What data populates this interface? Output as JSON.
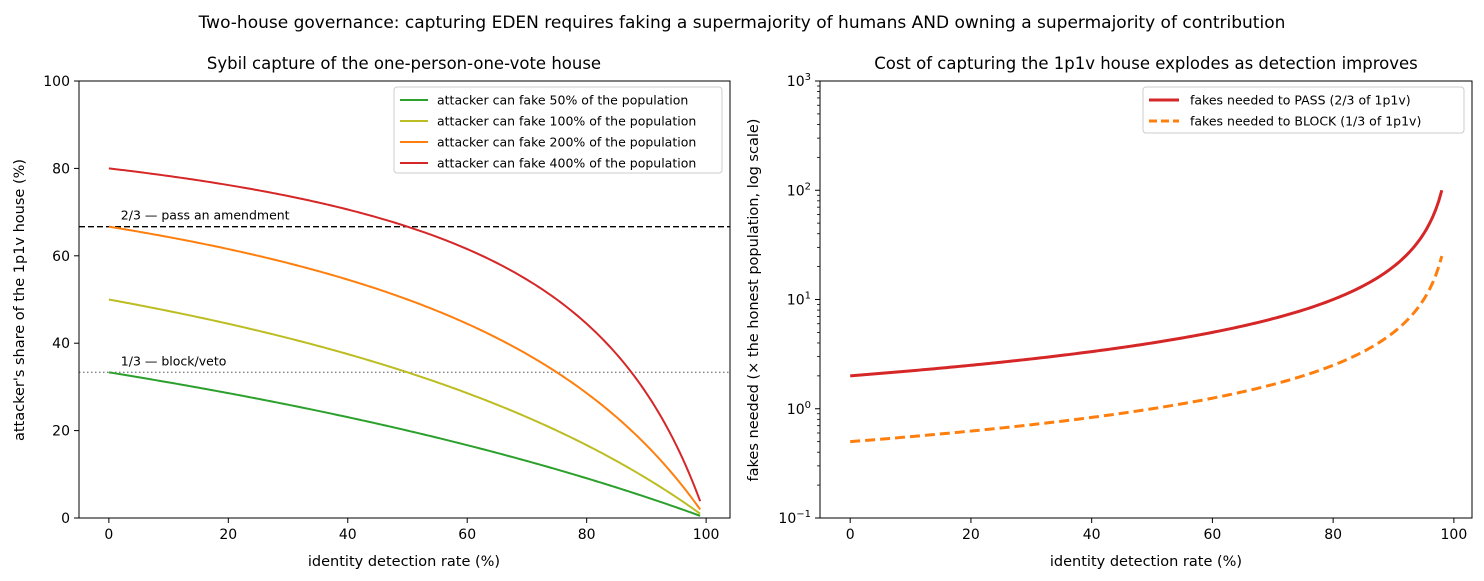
{
  "suptitle": "Two-house governance: capturing EDEN requires faking a supermajority of humans AND owning a supermajority of contribution",
  "chart_data": [
    {
      "type": "line",
      "title": "Sybil capture of the one-person-one-vote house",
      "xlabel": "identity detection rate (%)",
      "ylabel": "attacker's share of the 1p1v house (%)",
      "xlim": [
        -5,
        104
      ],
      "ylim": [
        0,
        100
      ],
      "xticks": [
        0,
        20,
        40,
        60,
        80,
        100
      ],
      "yticks": [
        0,
        20,
        40,
        60,
        80,
        100
      ],
      "grid": false,
      "legend": "top-right",
      "x_range": [
        0,
        99
      ],
      "series": [
        {
          "name": "attacker can fake 50% of the population",
          "fake_fraction": 0.5,
          "color": "#2ca02c"
        },
        {
          "name": "attacker can fake 100% of the population",
          "fake_fraction": 1.0,
          "color": "#bcbd22"
        },
        {
          "name": "attacker can fake 200% of the population",
          "fake_fraction": 2.0,
          "color": "#ff7f0e"
        },
        {
          "name": "attacker can fake 400% of the population",
          "fake_fraction": 4.0,
          "color": "#d62728"
        }
      ],
      "reference_lines": [
        {
          "y": 66.67,
          "label": "2/3 — pass an amendment",
          "style": "dashed",
          "color": "#000000"
        },
        {
          "y": 33.33,
          "label": "1/3 — block/veto",
          "style": "dotted",
          "color": "#808080"
        }
      ]
    },
    {
      "type": "line",
      "title": "Cost of capturing the 1p1v house explodes as detection improves",
      "xlabel": "identity detection rate (%)",
      "ylabel": "fakes needed (× the honest population, log scale)",
      "xlim": [
        -5,
        103
      ],
      "ylim": [
        0.1,
        1000
      ],
      "yscale": "log",
      "xticks": [
        0,
        20,
        40,
        60,
        80,
        100
      ],
      "yticks": [
        0.1,
        1,
        10,
        100,
        1000
      ],
      "ytick_labels": [
        "10^-1",
        "10^0",
        "10^1",
        "10^2",
        "10^3"
      ],
      "grid": false,
      "legend": "top-right",
      "x_range": [
        0,
        98
      ],
      "series": [
        {
          "name": "fakes needed to PASS (2/3 of 1p1v)",
          "threshold": 0.6667,
          "color": "#d62728",
          "style": "solid"
        },
        {
          "name": "fakes needed to BLOCK (1/3 of 1p1v)",
          "threshold": 0.3333,
          "color": "#ff7f0e",
          "style": "dashed"
        }
      ]
    }
  ]
}
